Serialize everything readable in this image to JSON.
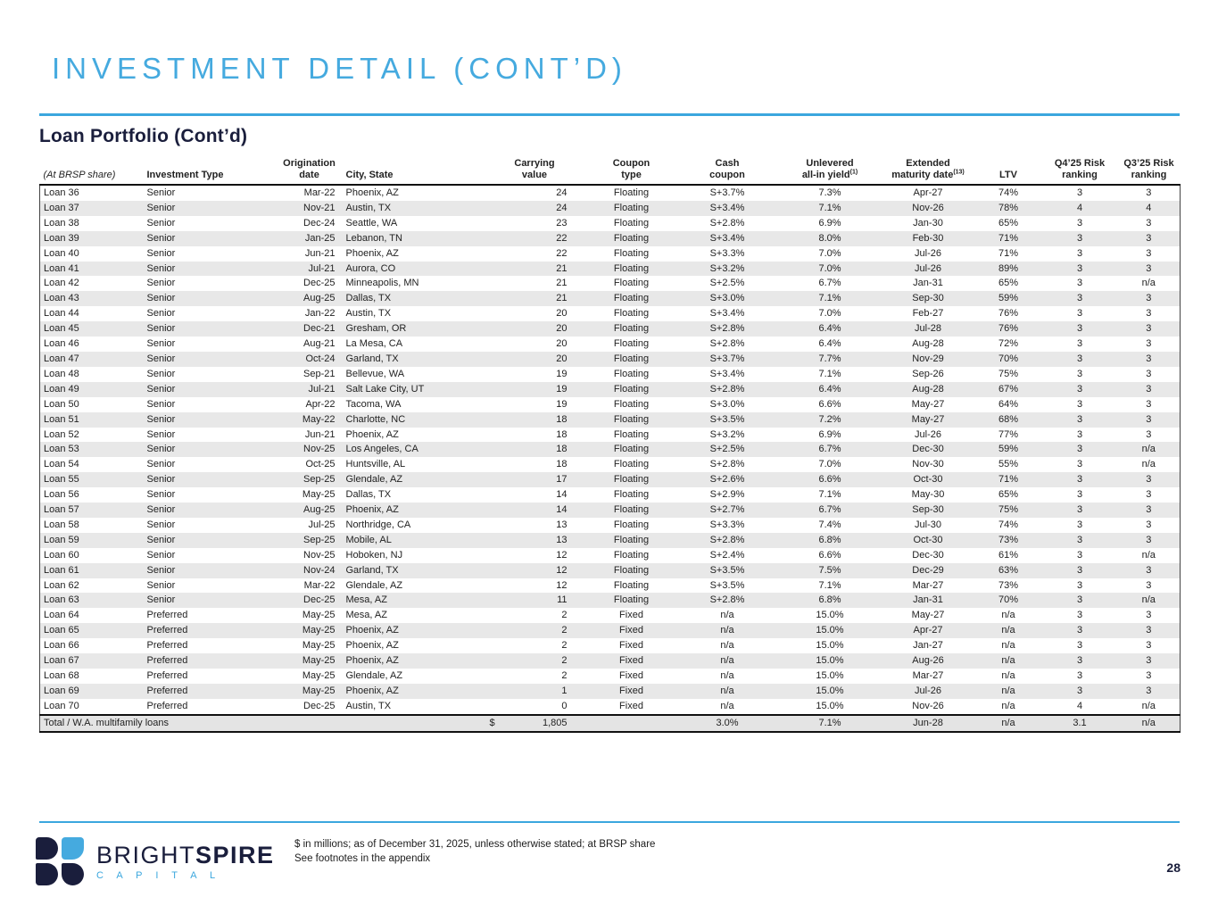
{
  "page": {
    "title": "INVESTMENT DETAIL (CONT’D)",
    "section_title": "Loan Portfolio (Cont’d)",
    "page_number": "28",
    "footnote_line1": "$ in millions; as of December 31, 2025, unless otherwise stated; at BRSP share",
    "footnote_line2": "See footnotes in the appendix",
    "logo": {
      "brand_regular": "BRIGHT",
      "brand_bold": "SPIRE",
      "brand_sub": "C A P I T A L"
    }
  },
  "colors": {
    "accent_blue": "#45aadf",
    "navy": "#1a1e3c",
    "stripe_gray": "#e8e8e8"
  },
  "table": {
    "columns": [
      {
        "line1": "",
        "line2": "(At BRSP share)",
        "sup": "",
        "corner": true
      },
      {
        "line1": "",
        "line2": "Investment Type",
        "sup": ""
      },
      {
        "line1": "Origination",
        "line2": "date",
        "sup": ""
      },
      {
        "line1": "",
        "line2": "City, State",
        "sup": ""
      },
      {
        "line1": "Carrying",
        "line2": "value",
        "sup": ""
      },
      {
        "line1": "Coupon",
        "line2": "type",
        "sup": ""
      },
      {
        "line1": "Cash",
        "line2": "coupon",
        "sup": ""
      },
      {
        "line1": "Unlevered",
        "line2": "all-in yield",
        "sup": "(1)"
      },
      {
        "line1": "Extended",
        "line2": "maturity date",
        "sup": "(13)"
      },
      {
        "line1": "",
        "line2": "LTV",
        "sup": ""
      },
      {
        "line1": "Q4’25 Risk",
        "line2": "ranking",
        "sup": ""
      },
      {
        "line1": "Q3’25 Risk",
        "line2": "ranking",
        "sup": ""
      }
    ],
    "rows": [
      [
        "Loan 36",
        "Senior",
        "Mar-22",
        "Phoenix, AZ",
        "24",
        "Floating",
        "S+3.7%",
        "7.3%",
        "Apr-27",
        "74%",
        "3",
        "3"
      ],
      [
        "Loan 37",
        "Senior",
        "Nov-21",
        "Austin, TX",
        "24",
        "Floating",
        "S+3.4%",
        "7.1%",
        "Nov-26",
        "78%",
        "4",
        "4"
      ],
      [
        "Loan 38",
        "Senior",
        "Dec-24",
        "Seattle, WA",
        "23",
        "Floating",
        "S+2.8%",
        "6.9%",
        "Jan-30",
        "65%",
        "3",
        "3"
      ],
      [
        "Loan 39",
        "Senior",
        "Jan-25",
        "Lebanon, TN",
        "22",
        "Floating",
        "S+3.4%",
        "8.0%",
        "Feb-30",
        "71%",
        "3",
        "3"
      ],
      [
        "Loan 40",
        "Senior",
        "Jun-21",
        "Phoenix, AZ",
        "22",
        "Floating",
        "S+3.3%",
        "7.0%",
        "Jul-26",
        "71%",
        "3",
        "3"
      ],
      [
        "Loan 41",
        "Senior",
        "Jul-21",
        "Aurora, CO",
        "21",
        "Floating",
        "S+3.2%",
        "7.0%",
        "Jul-26",
        "89%",
        "3",
        "3"
      ],
      [
        "Loan 42",
        "Senior",
        "Dec-25",
        "Minneapolis, MN",
        "21",
        "Floating",
        "S+2.5%",
        "6.7%",
        "Jan-31",
        "65%",
        "3",
        "n/a"
      ],
      [
        "Loan 43",
        "Senior",
        "Aug-25",
        "Dallas, TX",
        "21",
        "Floating",
        "S+3.0%",
        "7.1%",
        "Sep-30",
        "59%",
        "3",
        "3"
      ],
      [
        "Loan 44",
        "Senior",
        "Jan-22",
        "Austin, TX",
        "20",
        "Floating",
        "S+3.4%",
        "7.0%",
        "Feb-27",
        "76%",
        "3",
        "3"
      ],
      [
        "Loan 45",
        "Senior",
        "Dec-21",
        "Gresham, OR",
        "20",
        "Floating",
        "S+2.8%",
        "6.4%",
        "Jul-28",
        "76%",
        "3",
        "3"
      ],
      [
        "Loan 46",
        "Senior",
        "Aug-21",
        "La Mesa, CA",
        "20",
        "Floating",
        "S+2.8%",
        "6.4%",
        "Aug-28",
        "72%",
        "3",
        "3"
      ],
      [
        "Loan 47",
        "Senior",
        "Oct-24",
        "Garland, TX",
        "20",
        "Floating",
        "S+3.7%",
        "7.7%",
        "Nov-29",
        "70%",
        "3",
        "3"
      ],
      [
        "Loan 48",
        "Senior",
        "Sep-21",
        "Bellevue, WA",
        "19",
        "Floating",
        "S+3.4%",
        "7.1%",
        "Sep-26",
        "75%",
        "3",
        "3"
      ],
      [
        "Loan 49",
        "Senior",
        "Jul-21",
        "Salt Lake City, UT",
        "19",
        "Floating",
        "S+2.8%",
        "6.4%",
        "Aug-28",
        "67%",
        "3",
        "3"
      ],
      [
        "Loan 50",
        "Senior",
        "Apr-22",
        "Tacoma, WA",
        "19",
        "Floating",
        "S+3.0%",
        "6.6%",
        "May-27",
        "64%",
        "3",
        "3"
      ],
      [
        "Loan 51",
        "Senior",
        "May-22",
        "Charlotte, NC",
        "18",
        "Floating",
        "S+3.5%",
        "7.2%",
        "May-27",
        "68%",
        "3",
        "3"
      ],
      [
        "Loan 52",
        "Senior",
        "Jun-21",
        "Phoenix, AZ",
        "18",
        "Floating",
        "S+3.2%",
        "6.9%",
        "Jul-26",
        "77%",
        "3",
        "3"
      ],
      [
        "Loan 53",
        "Senior",
        "Nov-25",
        "Los Angeles, CA",
        "18",
        "Floating",
        "S+2.5%",
        "6.7%",
        "Dec-30",
        "59%",
        "3",
        "n/a"
      ],
      [
        "Loan 54",
        "Senior",
        "Oct-25",
        "Huntsville, AL",
        "18",
        "Floating",
        "S+2.8%",
        "7.0%",
        "Nov-30",
        "55%",
        "3",
        "n/a"
      ],
      [
        "Loan 55",
        "Senior",
        "Sep-25",
        "Glendale, AZ",
        "17",
        "Floating",
        "S+2.6%",
        "6.6%",
        "Oct-30",
        "71%",
        "3",
        "3"
      ],
      [
        "Loan 56",
        "Senior",
        "May-25",
        "Dallas, TX",
        "14",
        "Floating",
        "S+2.9%",
        "7.1%",
        "May-30",
        "65%",
        "3",
        "3"
      ],
      [
        "Loan 57",
        "Senior",
        "Aug-25",
        "Phoenix, AZ",
        "14",
        "Floating",
        "S+2.7%",
        "6.7%",
        "Sep-30",
        "75%",
        "3",
        "3"
      ],
      [
        "Loan 58",
        "Senior",
        "Jul-25",
        "Northridge, CA",
        "13",
        "Floating",
        "S+3.3%",
        "7.4%",
        "Jul-30",
        "74%",
        "3",
        "3"
      ],
      [
        "Loan 59",
        "Senior",
        "Sep-25",
        "Mobile, AL",
        "13",
        "Floating",
        "S+2.8%",
        "6.8%",
        "Oct-30",
        "73%",
        "3",
        "3"
      ],
      [
        "Loan 60",
        "Senior",
        "Nov-25",
        "Hoboken, NJ",
        "12",
        "Floating",
        "S+2.4%",
        "6.6%",
        "Dec-30",
        "61%",
        "3",
        "n/a"
      ],
      [
        "Loan 61",
        "Senior",
        "Nov-24",
        "Garland, TX",
        "12",
        "Floating",
        "S+3.5%",
        "7.5%",
        "Dec-29",
        "63%",
        "3",
        "3"
      ],
      [
        "Loan 62",
        "Senior",
        "Mar-22",
        "Glendale, AZ",
        "12",
        "Floating",
        "S+3.5%",
        "7.1%",
        "Mar-27",
        "73%",
        "3",
        "3"
      ],
      [
        "Loan 63",
        "Senior",
        "Dec-25",
        "Mesa, AZ",
        "11",
        "Floating",
        "S+2.8%",
        "6.8%",
        "Jan-31",
        "70%",
        "3",
        "n/a"
      ],
      [
        "Loan 64",
        "Preferred",
        "May-25",
        "Mesa, AZ",
        "2",
        "Fixed",
        "n/a",
        "15.0%",
        "May-27",
        "n/a",
        "3",
        "3"
      ],
      [
        "Loan 65",
        "Preferred",
        "May-25",
        "Phoenix, AZ",
        "2",
        "Fixed",
        "n/a",
        "15.0%",
        "Apr-27",
        "n/a",
        "3",
        "3"
      ],
      [
        "Loan 66",
        "Preferred",
        "May-25",
        "Phoenix, AZ",
        "2",
        "Fixed",
        "n/a",
        "15.0%",
        "Jan-27",
        "n/a",
        "3",
        "3"
      ],
      [
        "Loan 67",
        "Preferred",
        "May-25",
        "Phoenix, AZ",
        "2",
        "Fixed",
        "n/a",
        "15.0%",
        "Aug-26",
        "n/a",
        "3",
        "3"
      ],
      [
        "Loan 68",
        "Preferred",
        "May-25",
        "Glendale, AZ",
        "2",
        "Fixed",
        "n/a",
        "15.0%",
        "Mar-27",
        "n/a",
        "3",
        "3"
      ],
      [
        "Loan 69",
        "Preferred",
        "May-25",
        "Phoenix, AZ",
        "1",
        "Fixed",
        "n/a",
        "15.0%",
        "Jul-26",
        "n/a",
        "3",
        "3"
      ],
      [
        "Loan 70",
        "Preferred",
        "Dec-25",
        "Austin, TX",
        "0",
        "Fixed",
        "n/a",
        "15.0%",
        "Nov-26",
        "n/a",
        "4",
        "n/a"
      ]
    ],
    "total_row": {
      "label": "Total / W.A. multifamily loans",
      "currency": "$",
      "carrying_value": "1,805",
      "coupon_type": "",
      "cash_coupon": "3.0%",
      "all_in_yield": "7.1%",
      "maturity": "Jun-28",
      "ltv": "n/a",
      "q4_ranking": "3.1",
      "q3_ranking": "n/a"
    }
  }
}
